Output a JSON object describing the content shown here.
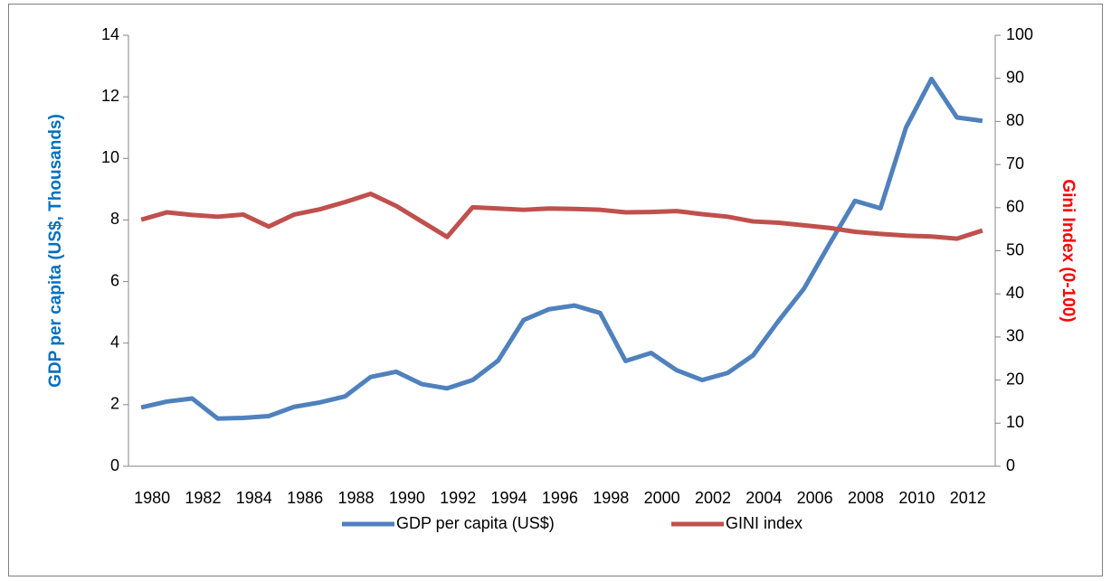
{
  "chart_data": {
    "type": "line",
    "categories": [
      "1980",
      null,
      "1982",
      null,
      "1984",
      null,
      "1986",
      null,
      "1988",
      null,
      "1990",
      null,
      "1992",
      null,
      "1994",
      null,
      "1996",
      null,
      "1998",
      null,
      "2000",
      null,
      "2002",
      null,
      "2004",
      null,
      "2006",
      null,
      "2008",
      null,
      "2010",
      null,
      "2012",
      null
    ],
    "y_label": "GDP per capita (US$, Thousands)",
    "y2_label": "Gini Index (0-100)",
    "y_label_color": "#0070c0",
    "y2_label_color": "#ff0000",
    "ylim": [
      0,
      14
    ],
    "yticks": [
      0,
      2,
      4,
      6,
      8,
      10,
      12,
      14
    ],
    "y2lim": [
      0,
      100
    ],
    "y2ticks": [
      0,
      10,
      20,
      30,
      40,
      50,
      60,
      70,
      80,
      90,
      100
    ],
    "legend": "bottom",
    "series": [
      {
        "name": "GDP per capita (US$)",
        "color": "#4f81bd",
        "values": [
          1.91,
          2.1,
          2.2,
          1.55,
          1.57,
          1.63,
          1.93,
          2.07,
          2.27,
          2.9,
          3.07,
          2.67,
          2.53,
          2.8,
          3.43,
          4.75,
          5.1,
          5.22,
          4.98,
          3.42,
          3.68,
          3.12,
          2.8,
          3.03,
          3.6,
          4.72,
          5.77,
          7.22,
          8.62,
          8.38,
          11.0,
          12.58,
          11.33,
          11.22
        ]
      },
      {
        "name": "GINI index",
        "color": "#c0504d",
        "axis": "y2",
        "values": [
          57.2,
          58.9,
          58.3,
          57.9,
          58.4,
          55.6,
          58.4,
          59.6,
          61.3,
          63.2,
          60.4,
          56.8,
          53.2,
          60.1,
          59.8,
          59.5,
          59.8,
          59.7,
          59.5,
          58.9,
          59.0,
          59.2,
          58.5,
          57.9,
          56.8,
          56.5,
          55.9,
          55.3,
          54.4,
          53.9,
          53.5,
          53.3,
          52.8,
          54.7
        ]
      }
    ]
  }
}
